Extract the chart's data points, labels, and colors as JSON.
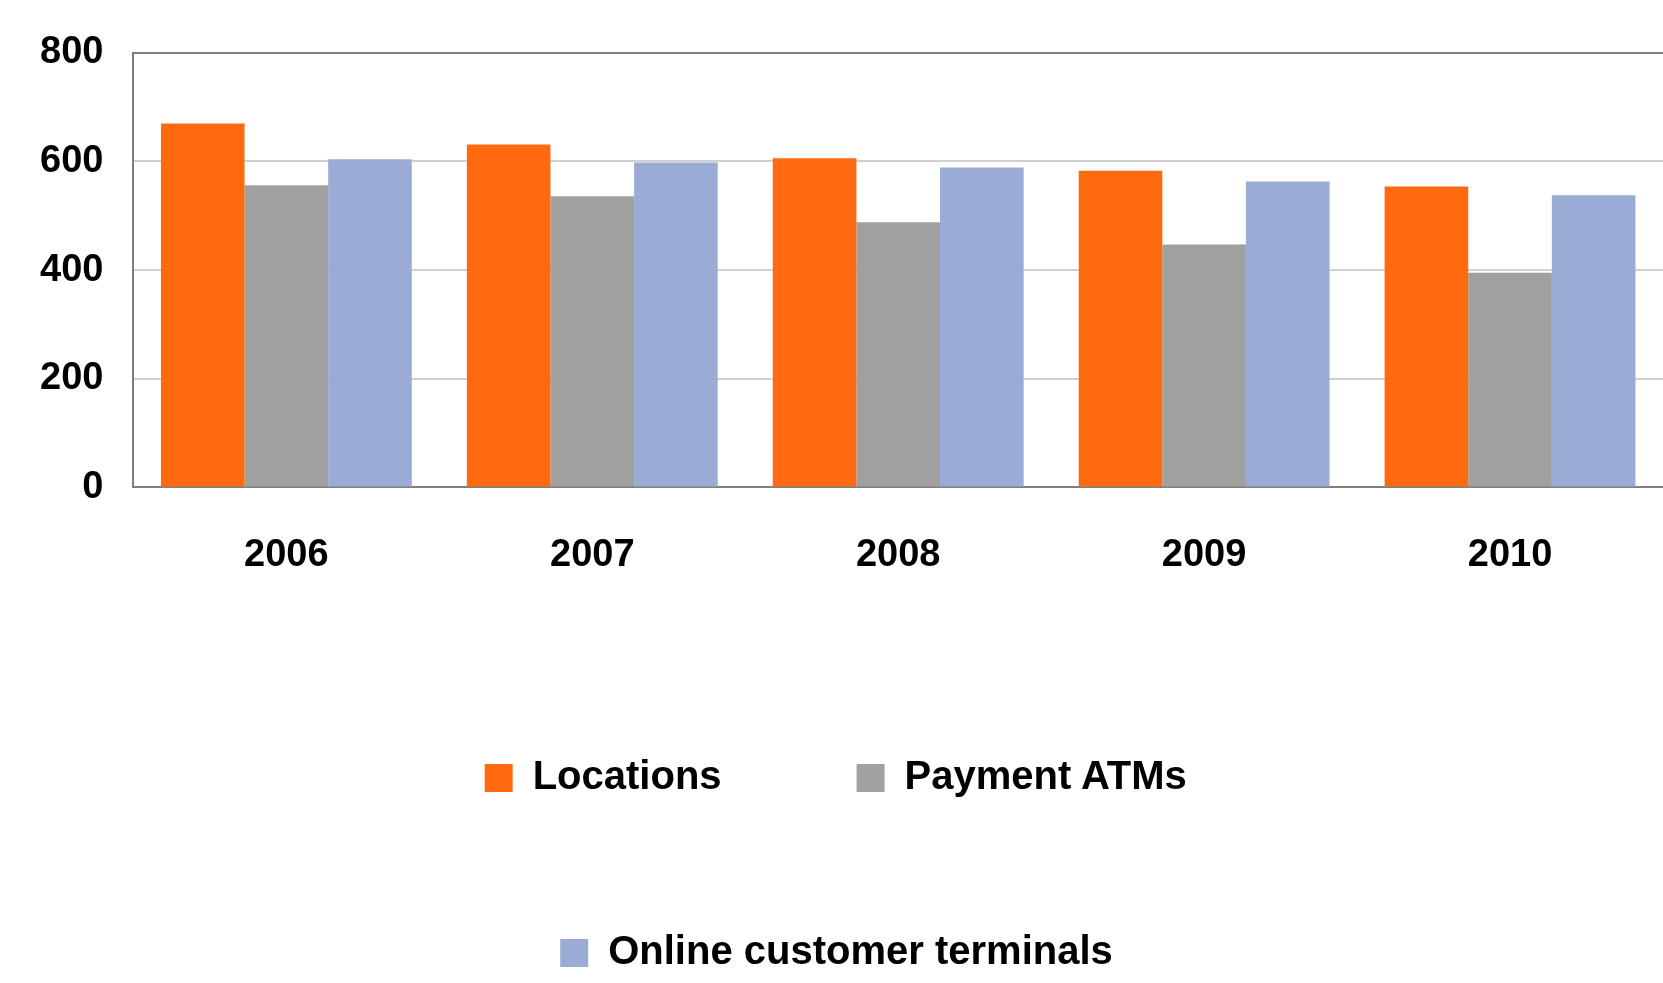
{
  "chart_data": {
    "type": "bar",
    "categories": [
      "2006",
      "2007",
      "2008",
      "2009",
      "2010"
    ],
    "series": [
      {
        "name": "Locations",
        "color": "#ff6a10",
        "values": [
          670,
          631,
          606,
          583,
          554
        ]
      },
      {
        "name": "Payment ATMs",
        "color": "#a0a0a0",
        "values": [
          556,
          536,
          488,
          447,
          395
        ]
      },
      {
        "name": "Online customer terminals",
        "color": "#9aabd5",
        "values": [
          604,
          598,
          589,
          563,
          538
        ]
      }
    ],
    "ylim": [
      0,
      800
    ],
    "yticks": [
      0,
      200,
      400,
      600,
      800
    ],
    "grid": "y",
    "legend": "bottom"
  }
}
